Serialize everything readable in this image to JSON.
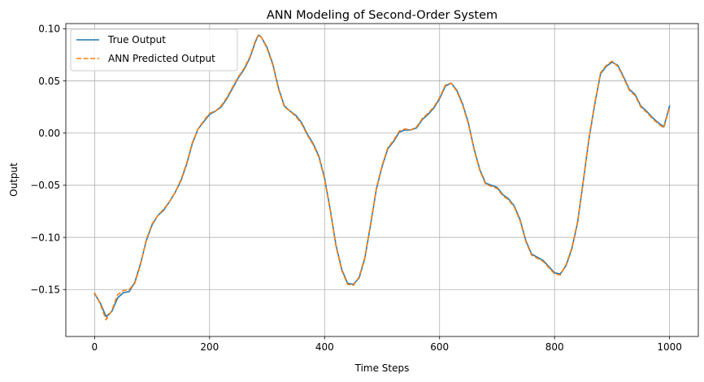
{
  "chart_data": {
    "type": "line",
    "title": "ANN Modeling of Second-Order System",
    "xlabel": "Time Steps",
    "ylabel": "Output",
    "xlim": [
      -50,
      1050
    ],
    "ylim": [
      -0.195,
      0.105
    ],
    "xticks": [
      0,
      200,
      400,
      600,
      800,
      1000
    ],
    "xtick_labels": [
      "0",
      "200",
      "400",
      "600",
      "800",
      "1000"
    ],
    "yticks": [
      0.1,
      0.05,
      0.0,
      -0.05,
      -0.1,
      -0.15
    ],
    "ytick_labels": [
      "0.10",
      "0.05",
      "0.00",
      "−0.05",
      "−0.10",
      "−0.15"
    ],
    "grid": true,
    "legend_position": "top-left",
    "x": [
      0,
      10,
      20,
      30,
      40,
      50,
      60,
      70,
      80,
      90,
      100,
      110,
      120,
      130,
      140,
      150,
      160,
      170,
      180,
      190,
      200,
      210,
      220,
      230,
      240,
      250,
      260,
      270,
      280,
      285,
      290,
      300,
      310,
      320,
      330,
      340,
      350,
      360,
      370,
      380,
      390,
      400,
      410,
      420,
      430,
      440,
      450,
      460,
      470,
      480,
      490,
      500,
      510,
      520,
      530,
      540,
      550,
      560,
      570,
      580,
      590,
      600,
      610,
      620,
      630,
      640,
      650,
      660,
      670,
      680,
      690,
      700,
      710,
      720,
      730,
      740,
      750,
      760,
      770,
      780,
      790,
      800,
      810,
      820,
      830,
      840,
      850,
      860,
      870,
      880,
      890,
      900,
      910,
      920,
      930,
      940,
      950,
      960,
      970,
      980,
      990,
      1000
    ],
    "series": [
      {
        "name": "True Output",
        "color": "#1f77b4",
        "style": "solid",
        "values": [
          -0.154,
          -0.163,
          -0.176,
          -0.171,
          -0.158,
          -0.153,
          -0.152,
          -0.143,
          -0.125,
          -0.103,
          -0.088,
          -0.079,
          -0.074,
          -0.066,
          -0.057,
          -0.046,
          -0.03,
          -0.01,
          0.004,
          0.011,
          0.018,
          0.021,
          0.025,
          0.033,
          0.043,
          0.053,
          0.061,
          0.072,
          0.088,
          0.094,
          0.092,
          0.082,
          0.066,
          0.043,
          0.026,
          0.021,
          0.017,
          0.01,
          -0.001,
          -0.01,
          -0.022,
          -0.043,
          -0.074,
          -0.108,
          -0.131,
          -0.144,
          -0.145,
          -0.139,
          -0.12,
          -0.088,
          -0.054,
          -0.032,
          -0.015,
          -0.008,
          0.001,
          0.003,
          0.003,
          0.005,
          0.013,
          0.018,
          0.024,
          0.033,
          0.045,
          0.048,
          0.041,
          0.028,
          0.01,
          -0.015,
          -0.035,
          -0.048,
          -0.05,
          -0.052,
          -0.059,
          -0.063,
          -0.07,
          -0.083,
          -0.103,
          -0.116,
          -0.119,
          -0.122,
          -0.128,
          -0.134,
          -0.135,
          -0.127,
          -0.111,
          -0.086,
          -0.046,
          -0.005,
          0.028,
          0.057,
          0.064,
          0.068,
          0.065,
          0.054,
          0.042,
          0.037,
          0.026,
          0.021,
          0.015,
          0.01,
          0.006,
          0.026
        ]
      },
      {
        "name": "ANN Predicted Output",
        "color": "#ff7f0e",
        "style": "dashed",
        "values": [
          -0.153,
          -0.164,
          -0.179,
          -0.17,
          -0.155,
          -0.151,
          -0.15,
          -0.144,
          -0.126,
          -0.102,
          -0.087,
          -0.079,
          -0.073,
          -0.066,
          -0.057,
          -0.045,
          -0.029,
          -0.009,
          0.004,
          0.012,
          0.019,
          0.021,
          0.026,
          0.034,
          0.044,
          0.054,
          0.062,
          0.073,
          0.089,
          0.094,
          0.092,
          0.081,
          0.065,
          0.042,
          0.025,
          0.021,
          0.016,
          0.009,
          -0.002,
          -0.011,
          -0.023,
          -0.044,
          -0.075,
          -0.109,
          -0.132,
          -0.145,
          -0.146,
          -0.138,
          -0.119,
          -0.087,
          -0.053,
          -0.031,
          -0.014,
          -0.007,
          0.002,
          0.004,
          0.003,
          0.006,
          0.014,
          0.019,
          0.025,
          0.034,
          0.046,
          0.048,
          0.04,
          0.027,
          0.009,
          -0.016,
          -0.036,
          -0.049,
          -0.051,
          -0.053,
          -0.06,
          -0.064,
          -0.071,
          -0.084,
          -0.104,
          -0.117,
          -0.12,
          -0.123,
          -0.129,
          -0.135,
          -0.136,
          -0.126,
          -0.11,
          -0.085,
          -0.045,
          -0.004,
          0.029,
          0.058,
          0.065,
          0.069,
          0.064,
          0.053,
          0.041,
          0.036,
          0.025,
          0.02,
          0.014,
          0.009,
          0.005,
          0.025
        ]
      }
    ]
  }
}
